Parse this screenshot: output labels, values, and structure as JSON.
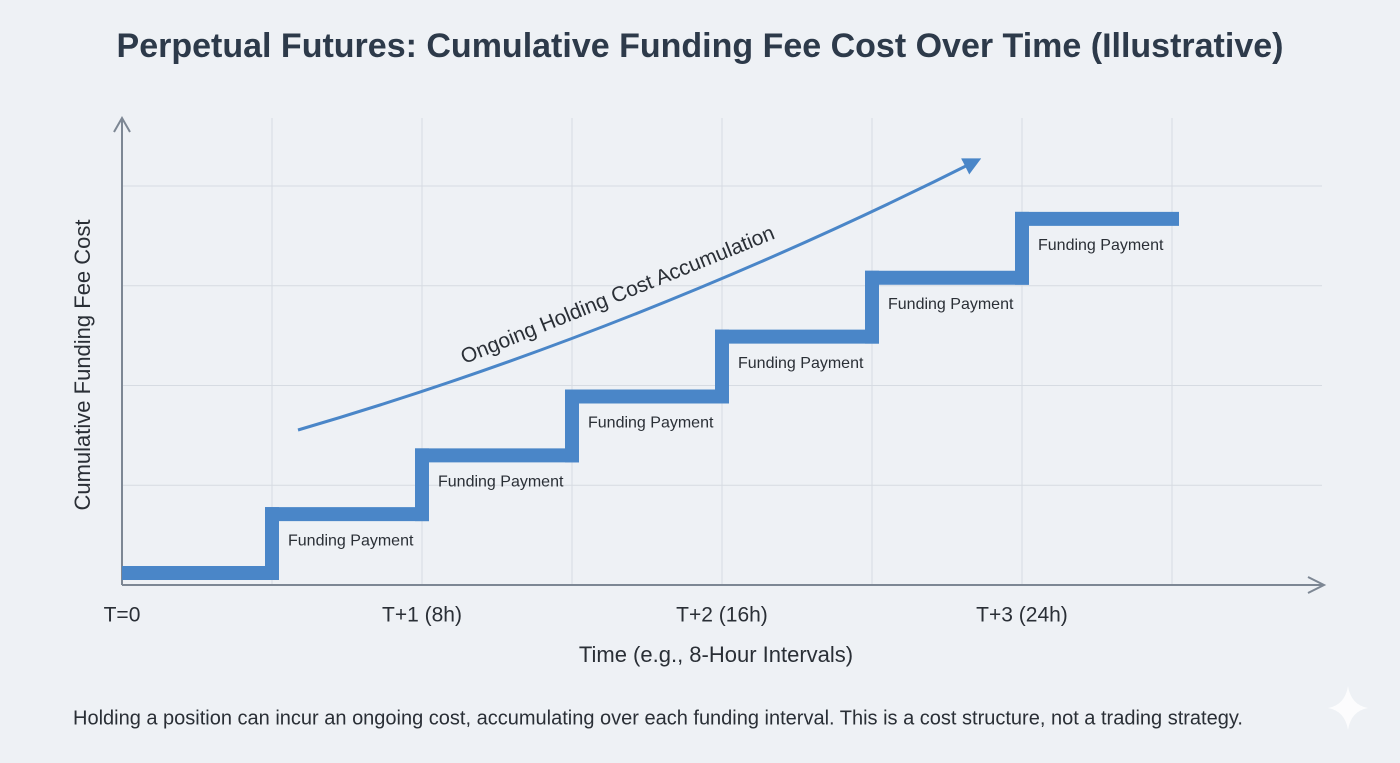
{
  "chart_data": {
    "type": "step",
    "title": "Perpetual Futures: Cumulative Funding Fee Cost Over Time (Illustrative)",
    "x_label": "Time (e.g., 8-Hour Intervals)",
    "y_label": "Cumulative Funding Fee Cost",
    "x": [
      0,
      1,
      2,
      3,
      4,
      5,
      6,
      7
    ],
    "values": [
      0.12,
      0.71,
      1.3,
      1.89,
      2.49,
      3.08,
      3.67,
      3.67
    ],
    "color": "#4a86c8",
    "xlim": [
      0,
      8
    ],
    "ylim": [
      0,
      4
    ],
    "xticks": [
      {
        "value": 0,
        "label": "T=0"
      },
      {
        "value": 2,
        "label": "T+1 (8h)"
      },
      {
        "value": 4,
        "label": "T+2 (16h)"
      },
      {
        "value": 6,
        "label": "T+3 (24h)"
      }
    ],
    "xgrid": [
      1,
      2,
      3,
      4,
      5,
      6,
      7
    ],
    "ygrid": [
      1,
      2,
      3,
      4
    ],
    "grid": true,
    "step_labels": [
      "Funding Payment",
      "Funding Payment",
      "Funding Payment",
      "Funding Payment",
      "Funding Payment",
      "Funding Payment"
    ],
    "trend_label": "Ongoing Holding Cost Accumulation",
    "footnote": "Holding a position can incur an ongoing cost, accumulating over each funding interval. This is a cost structure, not a trading strategy."
  }
}
